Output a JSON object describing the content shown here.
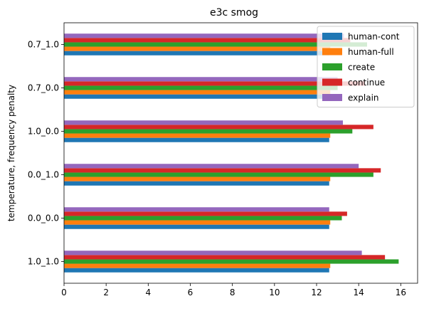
{
  "chart_data": {
    "type": "bar",
    "orientation": "horizontal",
    "title": "e3c smog",
    "xlabel": "",
    "ylabel": "temperature, frequency penalty",
    "xlim": [
      0,
      16.8
    ],
    "xticks": [
      0,
      2,
      4,
      6,
      8,
      10,
      12,
      14,
      16
    ],
    "grid": false,
    "legend_position": "top-right",
    "categories": [
      "1.0_1.0",
      "0.0_0.0",
      "0.0_1.0",
      "1.0_0.0",
      "0.7_0.0",
      "0.7_1.0"
    ],
    "series": [
      {
        "name": "human-cont",
        "color": "#1f77b4",
        "values": [
          12.6,
          12.6,
          12.6,
          12.6,
          12.6,
          12.6
        ]
      },
      {
        "name": "human-full",
        "color": "#ff7f0e",
        "values": [
          12.65,
          12.65,
          12.65,
          12.65,
          12.65,
          12.65
        ]
      },
      {
        "name": "create",
        "color": "#2ca02c",
        "values": [
          15.9,
          13.2,
          14.7,
          13.7,
          13.0,
          14.4
        ]
      },
      {
        "name": "continue",
        "color": "#d62728",
        "values": [
          15.25,
          13.45,
          15.05,
          14.7,
          14.3,
          13.6
        ]
      },
      {
        "name": "explain",
        "color": "#9467bd",
        "values": [
          14.15,
          12.6,
          14.0,
          13.25,
          13.0,
          13.3
        ]
      }
    ]
  }
}
